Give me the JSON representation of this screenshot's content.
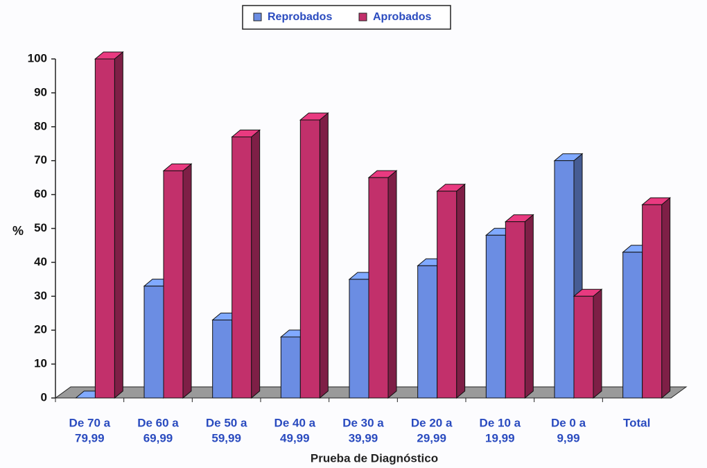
{
  "chart_data": {
    "type": "bar3d",
    "y_label": "%",
    "x_label": "Prueba de Diagnóstico",
    "categories": [
      [
        "De 70 a",
        "79,99"
      ],
      [
        "De 60 a",
        "69,99"
      ],
      [
        "De 50 a",
        "59,99"
      ],
      [
        "De 40 a",
        "49,99"
      ],
      [
        "De 30 a",
        "39,99"
      ],
      [
        "De 20 a",
        "29,99"
      ],
      [
        "De 10 a",
        "19,99"
      ],
      [
        "De 0 a",
        "9,99"
      ],
      [
        "Total"
      ]
    ],
    "series": [
      {
        "name": "Reprobados",
        "color": "#6b8de3",
        "values": [
          0,
          33,
          23,
          18,
          35,
          39,
          48,
          70,
          43
        ]
      },
      {
        "name": "Aprobados",
        "color": "#c2306b",
        "values": [
          100,
          67,
          77,
          82,
          65,
          61,
          52,
          30,
          57
        ]
      }
    ],
    "ylim": [
      0,
      100
    ],
    "yticks": [
      0,
      10,
      20,
      30,
      40,
      50,
      60,
      70,
      80,
      90,
      100
    ],
    "grid": false
  }
}
